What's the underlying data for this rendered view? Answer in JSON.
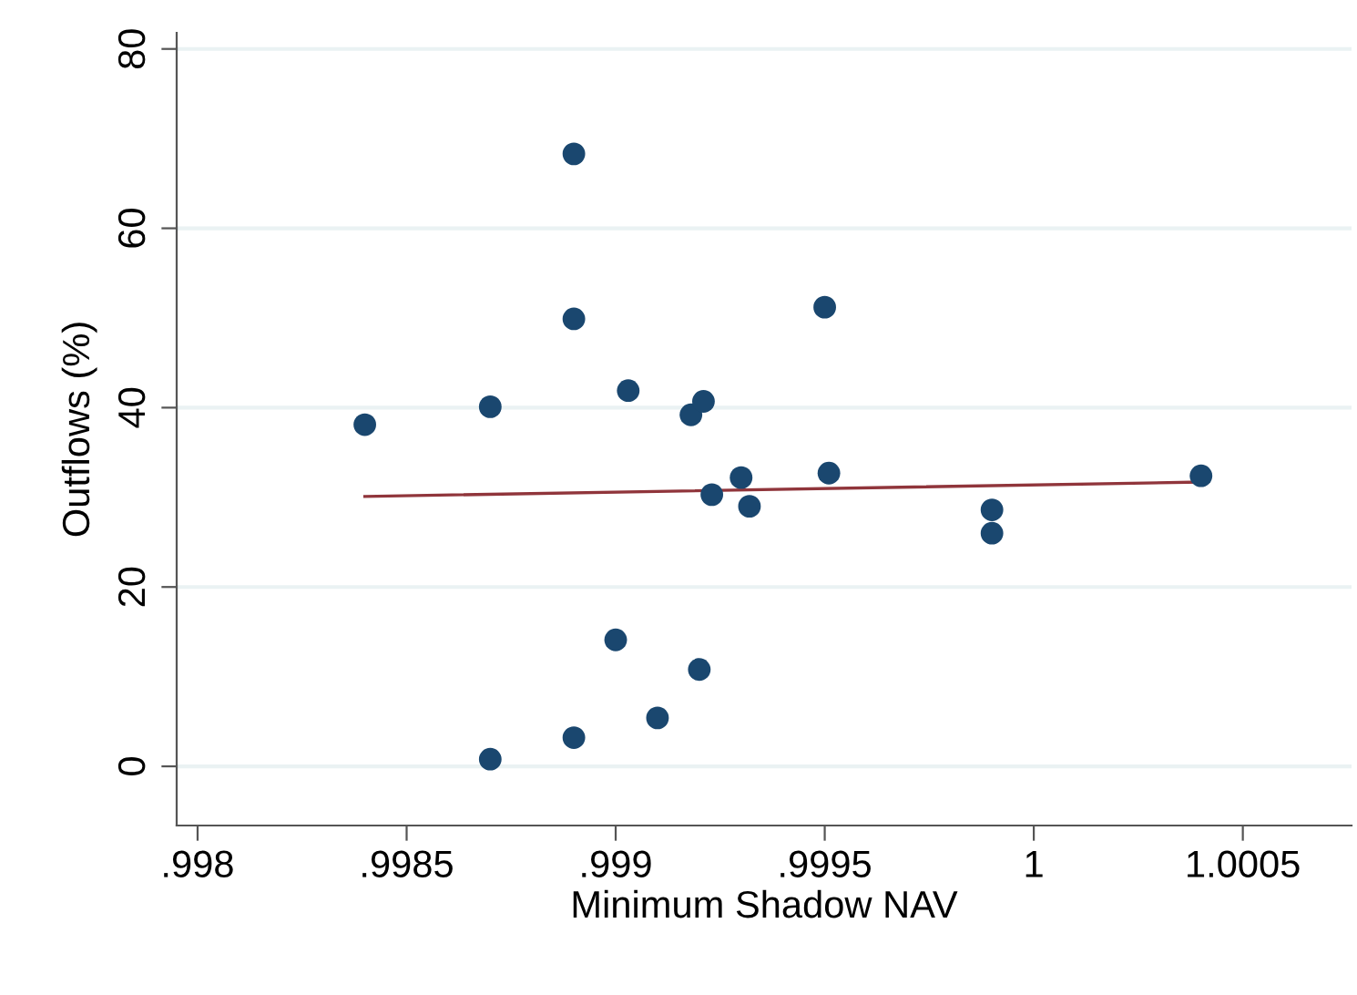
{
  "chart_data": {
    "type": "scatter",
    "xlabel": "Minimum Shadow NAV",
    "ylabel": "Outflows (%)",
    "xlim": [
      0.99795,
      1.00076
    ],
    "xticks": [
      {
        "value": 0.998,
        "label": ".998"
      },
      {
        "value": 0.9985,
        "label": ".9985"
      },
      {
        "value": 0.999,
        "label": ".999"
      },
      {
        "value": 0.9995,
        "label": ".9995"
      },
      1,
      1.0005
    ],
    "ylim": [
      -6.6,
      81.8
    ],
    "yticks": [
      0,
      20,
      40,
      60,
      80
    ],
    "grid": "y",
    "legend": false,
    "series": [
      {
        "marker": "circle",
        "color": "#1a476f",
        "x": [
          0.9984,
          0.9987,
          0.9987,
          0.9989,
          0.9989,
          0.9989,
          0.999,
          0.99903,
          0.9991,
          0.9992,
          0.99918,
          0.99921,
          0.99923,
          0.9993,
          0.99932,
          0.9995,
          0.99951,
          0.9999,
          0.9999,
          1.0004
        ],
        "values": [
          38.1,
          40.1,
          0.8,
          68.3,
          49.9,
          3.2,
          14.1,
          41.9,
          5.4,
          10.8,
          39.2,
          40.7,
          30.3,
          32.2,
          29.0,
          51.2,
          32.7,
          28.6,
          26.0,
          32.4
        ]
      },
      {
        "type": "line",
        "color": "#90353b",
        "line_style": "solid",
        "x": [
          0.9984,
          1.0004
        ],
        "values": [
          30.1,
          31.7
        ]
      }
    ]
  }
}
